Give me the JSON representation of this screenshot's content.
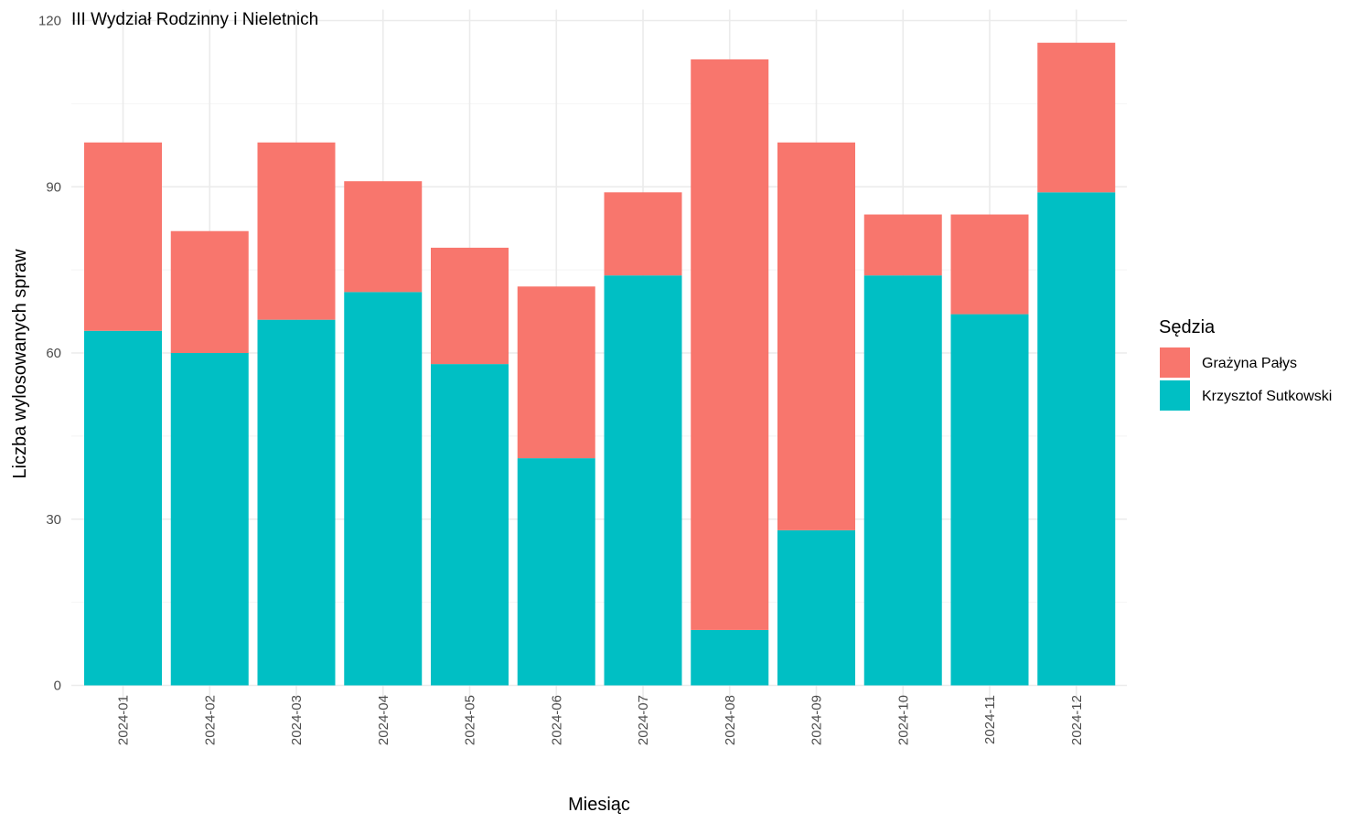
{
  "chart_data": {
    "type": "bar",
    "stacked": true,
    "title": "III Wydział Rodzinny i Nieletnich",
    "xlabel": "Miesiąc",
    "ylabel": "Liczba wylosowanych spraw",
    "ylim": [
      0,
      120
    ],
    "yticks": [
      0,
      30,
      60,
      90,
      120
    ],
    "grid": true,
    "legend": {
      "title": "Sędzia",
      "position": "right"
    },
    "categories": [
      "2024-01",
      "2024-02",
      "2024-03",
      "2024-04",
      "2024-05",
      "2024-06",
      "2024-07",
      "2024-08",
      "2024-09",
      "2024-10",
      "2024-11",
      "2024-12"
    ],
    "series": [
      {
        "name": "Grażyna Pałys",
        "color": "#F8766D",
        "values": [
          34,
          22,
          32,
          20,
          21,
          31,
          15,
          103,
          70,
          11,
          18,
          27
        ]
      },
      {
        "name": "Krzysztof Sutkowski",
        "color": "#00BFC4",
        "values": [
          64,
          60,
          66,
          71,
          58,
          41,
          74,
          10,
          28,
          74,
          67,
          89
        ]
      }
    ]
  }
}
